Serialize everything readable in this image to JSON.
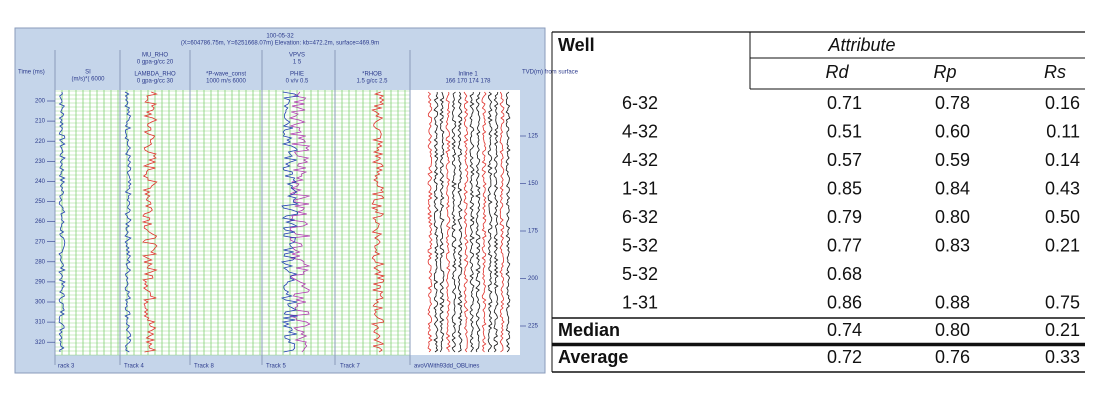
{
  "log": {
    "title": "100-05-32",
    "subtitle": "(X=604786.75m, Y=6251668.07m) Elevation: kb=472.2m, surface=469.9m",
    "left_axis_label": "Time (ms)",
    "right_axis_label": "TVD(m) from surface",
    "track_headers": [
      {
        "name": "SI",
        "scale": "(m/s)*(  6000"
      },
      {
        "name": "MU_RHO",
        "scale": "0   gpa-g/cc   20"
      },
      {
        "name": "LAMBDA_RHO",
        "scale": "0   gpa-g/cc   30"
      },
      {
        "name": "*P-wave_const",
        "scale": "1000   m/s   6000"
      },
      {
        "name": "VPVS",
        "scale": "1        5"
      },
      {
        "name": "PHIE",
        "scale": "0    v/v    0.5"
      },
      {
        "name": "*RHOB",
        "scale": "1.5   g/cc   2.5"
      },
      {
        "name": "Inline 1",
        "scale": "166  170  174  178"
      }
    ],
    "time_ticks": [
      200,
      210,
      220,
      230,
      240,
      250,
      260,
      270,
      280,
      290,
      300,
      310,
      320
    ],
    "tvd_ticks": [
      125,
      150,
      175,
      200,
      225
    ],
    "footer": [
      "rack 3",
      "Track 4",
      "Track 8",
      "Track 5",
      "Track 7",
      "avoVWith93dd_OBLines"
    ]
  },
  "table": {
    "header": {
      "well": "Well",
      "attribute": "Attribute"
    },
    "columns": [
      "Rd",
      "Rp",
      "Rs"
    ],
    "rows": [
      [
        "6-32",
        "0.71",
        "0.78",
        "0.16"
      ],
      [
        "4-32",
        "0.51",
        "0.60",
        "0.11"
      ],
      [
        "4-32",
        "0.57",
        "0.59",
        "0.14"
      ],
      [
        "1-31",
        "0.85",
        "0.84",
        "0.43"
      ],
      [
        "6-32",
        "0.79",
        "0.80",
        "0.50"
      ],
      [
        "5-32",
        "0.77",
        "0.83",
        "0.21"
      ],
      [
        "5-32",
        "0.68",
        null,
        null
      ],
      [
        "1-31",
        "0.86",
        "0.88",
        "0.75"
      ]
    ],
    "summary": [
      {
        "label": "Median",
        "values": [
          "0.74",
          "0.80",
          "0.21"
        ]
      },
      {
        "label": "Average",
        "values": [
          "0.72",
          "0.76",
          "0.33"
        ]
      }
    ]
  }
}
